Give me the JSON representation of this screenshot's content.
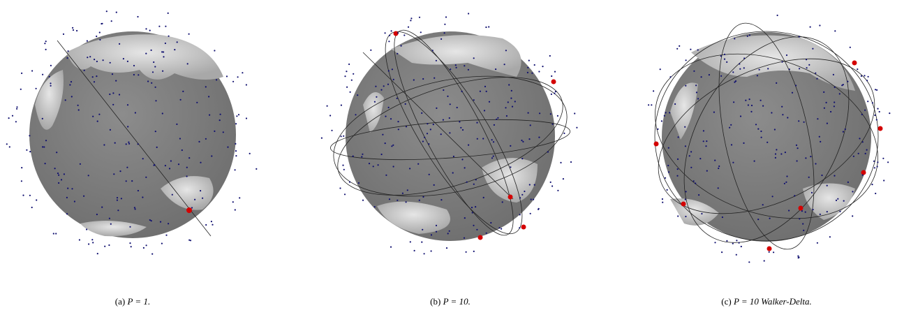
{
  "figures": [
    {
      "label": "(a)",
      "caption": "P = 1."
    },
    {
      "label": "(b)",
      "caption": "P = 10."
    },
    {
      "label": "(c)",
      "caption": "P = 10 Walker-Delta."
    }
  ]
}
